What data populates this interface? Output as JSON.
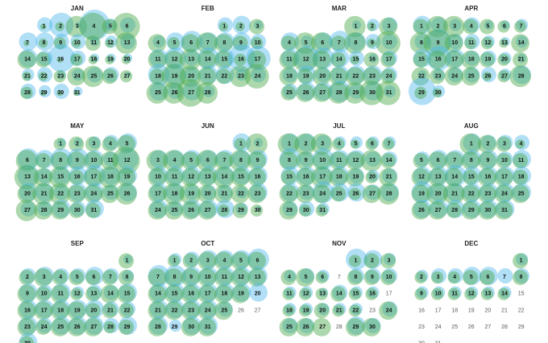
{
  "chart_data": {
    "type": "bubble-calendar",
    "colors": {
      "series_a": "#4fb8ec",
      "series_b": "#4aa84a"
    },
    "months": [
      {
        "name": "JAN",
        "start_weekday": 1,
        "days": 31,
        "blue": [
          5,
          8,
          2,
          10,
          4,
          5,
          6,
          6,
          5,
          5,
          3,
          4,
          5,
          6,
          5,
          9,
          5,
          3,
          3,
          3,
          4,
          5,
          3,
          4,
          5,
          5,
          2,
          5,
          4,
          5,
          3
        ],
        "green": [
          2,
          3,
          7,
          9,
          5,
          9,
          2,
          3,
          4,
          3,
          5,
          3,
          7,
          6,
          5,
          2,
          4,
          3,
          3,
          3,
          3,
          3,
          4,
          6,
          7,
          5,
          4,
          4,
          2,
          2,
          2
        ]
      },
      {
        "name": "FEB",
        "start_weekday": 4,
        "days": 28,
        "blue": [
          5,
          6,
          3,
          4,
          6,
          7,
          6,
          6,
          6,
          5,
          6,
          7,
          5,
          7,
          6,
          9,
          8,
          7,
          7,
          5,
          6,
          6,
          4,
          5,
          6,
          5,
          6,
          4
        ],
        "green": [
          3,
          3,
          5,
          6,
          4,
          6,
          7,
          6,
          5,
          4,
          6,
          6,
          7,
          6,
          6,
          4,
          6,
          5,
          8,
          7,
          6,
          5,
          7,
          8,
          7,
          7,
          9,
          7
        ]
      },
      {
        "name": "MAR",
        "start_weekday": 4,
        "days": 31,
        "blue": [
          3,
          4,
          5,
          6,
          4,
          6,
          7,
          6,
          5,
          5,
          6,
          8,
          7,
          6,
          5,
          3,
          5,
          5,
          6,
          5,
          6,
          6,
          6,
          5,
          5,
          6,
          6,
          7,
          5,
          6,
          4
        ],
        "green": [
          7,
          3,
          6,
          5,
          7,
          7,
          5,
          7,
          3,
          8,
          6,
          8,
          6,
          5,
          3,
          5,
          5,
          6,
          5,
          6,
          6,
          6,
          6,
          5,
          5,
          6,
          6,
          7,
          7,
          8,
          8
        ]
      },
      {
        "name": "APR",
        "start_weekday": 0,
        "days": 30,
        "blue": [
          6,
          5,
          4,
          5,
          3,
          3,
          4,
          5,
          8,
          5,
          5,
          4,
          3,
          4,
          6,
          8,
          6,
          5,
          5,
          4,
          3,
          3,
          4,
          5,
          5,
          5,
          4,
          6,
          9,
          4
        ],
        "green": [
          5,
          7,
          7,
          5,
          5,
          4,
          4,
          7,
          9,
          6,
          4,
          4,
          3,
          6,
          5,
          6,
          6,
          6,
          5,
          4,
          5,
          6,
          5,
          6,
          6,
          3,
          4,
          7,
          4,
          3
        ]
      },
      {
        "name": "MAY",
        "start_weekday": 2,
        "days": 31,
        "blue": [
          3,
          3,
          4,
          5,
          6,
          7,
          6,
          7,
          7,
          6,
          5,
          7,
          7,
          5,
          6,
          6,
          7,
          6,
          6,
          6,
          6,
          5,
          6,
          6,
          5,
          6,
          5,
          5,
          6,
          5,
          6
        ],
        "green": [
          4,
          5,
          5,
          5,
          6,
          7,
          5,
          6,
          6,
          6,
          6,
          9,
          8,
          6,
          7,
          5,
          6,
          7,
          6,
          6,
          7,
          7,
          6,
          6,
          6,
          7,
          7,
          6,
          6,
          5,
          5
        ]
      },
      {
        "name": "JUN",
        "start_weekday": 5,
        "days": 30,
        "blue": [
          6,
          3,
          6,
          6,
          6,
          6,
          6,
          6,
          6,
          6,
          6,
          6,
          6,
          6,
          6,
          6,
          6,
          6,
          5,
          5,
          5,
          4,
          6,
          6,
          5,
          6,
          6,
          6,
          4,
          2
        ],
        "green": [
          4,
          7,
          7,
          7,
          6,
          7,
          6,
          7,
          6,
          6,
          6,
          6,
          6,
          7,
          6,
          6,
          6,
          7,
          7,
          6,
          6,
          6,
          6,
          6,
          6,
          6,
          6,
          4,
          5,
          4
        ]
      },
      {
        "name": "JUL",
        "start_weekday": 0,
        "days": 31,
        "blue": [
          6,
          6,
          5,
          4,
          4,
          4,
          4,
          7,
          5,
          7,
          6,
          6,
          5,
          5,
          6,
          6,
          6,
          6,
          5,
          4,
          5,
          6,
          5,
          7,
          6,
          6,
          5,
          6,
          5,
          5,
          4
        ],
        "green": [
          7,
          7,
          7,
          4,
          3,
          4,
          4,
          6,
          6,
          6,
          6,
          6,
          7,
          5,
          5,
          6,
          7,
          6,
          6,
          4,
          6,
          6,
          6,
          6,
          5,
          4,
          6,
          7,
          6,
          4,
          4
        ]
      },
      {
        "name": "AUG",
        "start_weekday": 3,
        "days": 31,
        "blue": [
          6,
          5,
          5,
          5,
          5,
          6,
          6,
          6,
          6,
          5,
          6,
          6,
          6,
          7,
          6,
          6,
          6,
          6,
          7,
          6,
          6,
          6,
          6,
          6,
          6,
          6,
          6,
          6,
          6,
          6,
          6
        ],
        "green": [
          7,
          6,
          5,
          3,
          5,
          6,
          6,
          6,
          6,
          5,
          5,
          6,
          6,
          6,
          5,
          6,
          6,
          5,
          6,
          7,
          7,
          6,
          6,
          6,
          6,
          6,
          6,
          5,
          6,
          6,
          6
        ]
      },
      {
        "name": "SEP",
        "start_weekday": 6,
        "days": 30,
        "blue": [
          3,
          5,
          6,
          5,
          5,
          6,
          5,
          4,
          6,
          5,
          6,
          4,
          5,
          5,
          6,
          6,
          6,
          6,
          6,
          6,
          5,
          5,
          6,
          5,
          6,
          6,
          6,
          5,
          6,
          6
        ],
        "green": [
          5,
          5,
          6,
          5,
          5,
          5,
          5,
          5,
          6,
          5,
          6,
          4,
          5,
          6,
          6,
          6,
          6,
          6,
          6,
          5,
          5,
          5,
          6,
          5,
          6,
          6,
          6,
          4,
          5,
          5
        ]
      },
      {
        "name": "OCT",
        "start_weekday": 1,
        "days": 31,
        "blue": [
          4,
          5,
          6,
          6,
          6,
          7,
          7,
          7,
          6,
          6,
          6,
          6,
          6,
          6,
          6,
          6,
          6,
          6,
          6,
          6,
          6,
          6,
          6,
          6,
          5,
          0,
          0,
          6,
          4,
          6,
          6
        ],
        "green": [
          4,
          5,
          6,
          6,
          6,
          6,
          6,
          6,
          6,
          6,
          6,
          6,
          6,
          6,
          6,
          6,
          6,
          6,
          6,
          0,
          6,
          6,
          6,
          6,
          6,
          0,
          0,
          6,
          0,
          6,
          6
        ]
      },
      {
        "name": "NOV",
        "start_weekday": 4,
        "days": 30,
        "blue": [
          7,
          6,
          4,
          4,
          5,
          4,
          0,
          5,
          5,
          5,
          4,
          4,
          3,
          5,
          4,
          4,
          0,
          4,
          4,
          4,
          4,
          4,
          0,
          5,
          5,
          5,
          0,
          0,
          6,
          5
        ],
        "green": [
          4,
          5,
          5,
          5,
          6,
          4,
          0,
          5,
          5,
          5,
          4,
          4,
          4,
          5,
          4,
          4,
          0,
          4,
          4,
          5,
          4,
          4,
          0,
          6,
          6,
          6,
          6,
          0,
          6,
          6
        ]
      },
      {
        "name": "DEC",
        "start_weekday": 6,
        "days": 31,
        "blue": [
          4,
          4,
          5,
          5,
          6,
          6,
          5,
          5,
          4,
          4,
          4,
          4,
          4,
          4,
          0,
          0,
          0,
          0,
          0,
          0,
          0,
          0,
          0,
          0,
          0,
          0,
          0,
          0,
          0,
          0,
          0
        ],
        "green": [
          5,
          4,
          4,
          4,
          5,
          5,
          0,
          5,
          4,
          4,
          4,
          4,
          4,
          4,
          0,
          0,
          0,
          0,
          0,
          0,
          0,
          0,
          0,
          0,
          0,
          0,
          0,
          0,
          0,
          0,
          0
        ]
      }
    ]
  }
}
